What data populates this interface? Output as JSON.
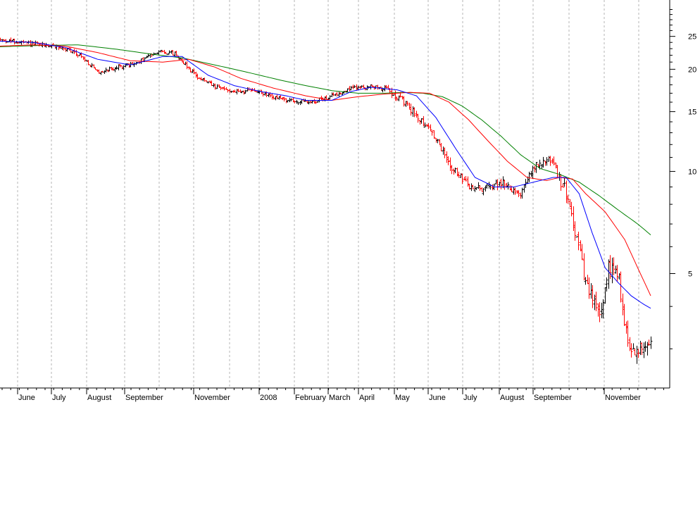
{
  "chart_data": {
    "type": "candlestick-line",
    "y_scale": "log",
    "ylim": [
      2.3,
      32
    ],
    "grid": "vertical dashed",
    "colors": {
      "up_candle": "#000000",
      "down_candle": "#ff0000",
      "ma_short": "#0000ff",
      "ma_mid": "#ff0000",
      "ma_long": "#008000"
    },
    "x_tick_labels": [
      "June",
      "July",
      "August",
      "September",
      "November",
      "2008",
      "February",
      "March",
      "April",
      "May",
      "June",
      "July",
      "August",
      "September",
      "November"
    ],
    "y_tick_labels": [
      {
        "label": "25",
        "value": 25
      },
      {
        "label": "20",
        "value": 20
      },
      {
        "label": "15",
        "value": 15
      },
      {
        "label": "10",
        "value": 10
      },
      {
        "label": "5",
        "value": 5
      }
    ],
    "y_minor_ticks": [
      30,
      29,
      28,
      27,
      26,
      24,
      23,
      22,
      21,
      19,
      18,
      17,
      16,
      14,
      13,
      12,
      11,
      9,
      8,
      7,
      6,
      4,
      3
    ],
    "price_path": [
      [
        0,
        24.4
      ],
      [
        0.03,
        24.0
      ],
      [
        0.06,
        23.6
      ],
      [
        0.09,
        23.3
      ],
      [
        0.12,
        22.2
      ],
      [
        0.15,
        19.6
      ],
      [
        0.18,
        20.3
      ],
      [
        0.21,
        20.8
      ],
      [
        0.24,
        22.6
      ],
      [
        0.27,
        22.2
      ],
      [
        0.3,
        19.2
      ],
      [
        0.33,
        17.7
      ],
      [
        0.36,
        17.2
      ],
      [
        0.39,
        17.3
      ],
      [
        0.42,
        16.5
      ],
      [
        0.45,
        16.1
      ],
      [
        0.48,
        16.0
      ],
      [
        0.51,
        16.7
      ],
      [
        0.54,
        17.6
      ],
      [
        0.57,
        17.8
      ],
      [
        0.6,
        17.4
      ],
      [
        0.63,
        15.3
      ],
      [
        0.66,
        13.4
      ],
      [
        0.69,
        10.5
      ],
      [
        0.72,
        9.0
      ],
      [
        0.74,
        8.9
      ],
      [
        0.77,
        9.3
      ],
      [
        0.8,
        8.6
      ],
      [
        0.82,
        10.3
      ],
      [
        0.845,
        10.9
      ],
      [
        0.865,
        9.1
      ],
      [
        0.875,
        8.1
      ],
      [
        0.88,
        7.2
      ],
      [
        0.89,
        5.9
      ],
      [
        0.9,
        4.6
      ],
      [
        0.91,
        4.2
      ],
      [
        0.925,
        3.8
      ],
      [
        0.935,
        5.2
      ],
      [
        0.95,
        5.1
      ],
      [
        0.96,
        3.4
      ],
      [
        0.975,
        2.9
      ],
      [
        0.99,
        3.1
      ],
      [
        1.0,
        3.2
      ]
    ],
    "ma_short_path": [
      [
        0,
        24.2
      ],
      [
        0.05,
        24.0
      ],
      [
        0.1,
        23.2
      ],
      [
        0.15,
        21.4
      ],
      [
        0.2,
        20.6
      ],
      [
        0.25,
        21.8
      ],
      [
        0.28,
        21.8
      ],
      [
        0.32,
        19.2
      ],
      [
        0.36,
        17.9
      ],
      [
        0.4,
        17.2
      ],
      [
        0.44,
        16.7
      ],
      [
        0.47,
        16.2
      ],
      [
        0.51,
        16.2
      ],
      [
        0.54,
        17.2
      ],
      [
        0.57,
        17.7
      ],
      [
        0.61,
        17.4
      ],
      [
        0.64,
        16.7
      ],
      [
        0.67,
        14.4
      ],
      [
        0.7,
        11.7
      ],
      [
        0.73,
        9.6
      ],
      [
        0.76,
        9.0
      ],
      [
        0.79,
        9.0
      ],
      [
        0.83,
        9.4
      ],
      [
        0.85,
        9.6
      ],
      [
        0.87,
        9.6
      ],
      [
        0.89,
        8.6
      ],
      [
        0.91,
        6.6
      ],
      [
        0.93,
        5.2
      ],
      [
        0.95,
        4.7
      ],
      [
        0.97,
        4.3
      ],
      [
        0.99,
        4.05
      ],
      [
        1.0,
        3.95
      ]
    ],
    "ma_mid_path": [
      [
        0,
        23.4
      ],
      [
        0.05,
        23.6
      ],
      [
        0.1,
        23.4
      ],
      [
        0.15,
        22.4
      ],
      [
        0.2,
        21.2
      ],
      [
        0.25,
        21.0
      ],
      [
        0.29,
        21.4
      ],
      [
        0.33,
        20.3
      ],
      [
        0.37,
        18.8
      ],
      [
        0.42,
        17.6
      ],
      [
        0.47,
        16.7
      ],
      [
        0.51,
        16.2
      ],
      [
        0.55,
        16.6
      ],
      [
        0.59,
        16.9
      ],
      [
        0.63,
        17.1
      ],
      [
        0.66,
        17.0
      ],
      [
        0.69,
        16.0
      ],
      [
        0.72,
        14.2
      ],
      [
        0.75,
        12.3
      ],
      [
        0.78,
        10.7
      ],
      [
        0.81,
        9.6
      ],
      [
        0.84,
        9.4
      ],
      [
        0.86,
        9.6
      ],
      [
        0.88,
        9.5
      ],
      [
        0.9,
        8.6
      ],
      [
        0.93,
        7.6
      ],
      [
        0.96,
        6.3
      ],
      [
        0.98,
        5.2
      ],
      [
        1.0,
        4.3
      ]
    ],
    "ma_long_path": [
      [
        0,
        23.3
      ],
      [
        0.06,
        23.5
      ],
      [
        0.12,
        23.6
      ],
      [
        0.18,
        22.9
      ],
      [
        0.23,
        22.2
      ],
      [
        0.28,
        21.6
      ],
      [
        0.33,
        20.6
      ],
      [
        0.38,
        19.6
      ],
      [
        0.43,
        18.6
      ],
      [
        0.47,
        17.9
      ],
      [
        0.51,
        17.3
      ],
      [
        0.55,
        17.0
      ],
      [
        0.59,
        17.0
      ],
      [
        0.62,
        17.1
      ],
      [
        0.65,
        17.0
      ],
      [
        0.68,
        16.6
      ],
      [
        0.71,
        15.6
      ],
      [
        0.74,
        14.2
      ],
      [
        0.77,
        12.7
      ],
      [
        0.8,
        11.2
      ],
      [
        0.83,
        10.2
      ],
      [
        0.86,
        9.8
      ],
      [
        0.89,
        9.3
      ],
      [
        0.92,
        8.5
      ],
      [
        0.95,
        7.7
      ],
      [
        0.98,
        7.0
      ],
      [
        1.0,
        6.5
      ]
    ]
  }
}
